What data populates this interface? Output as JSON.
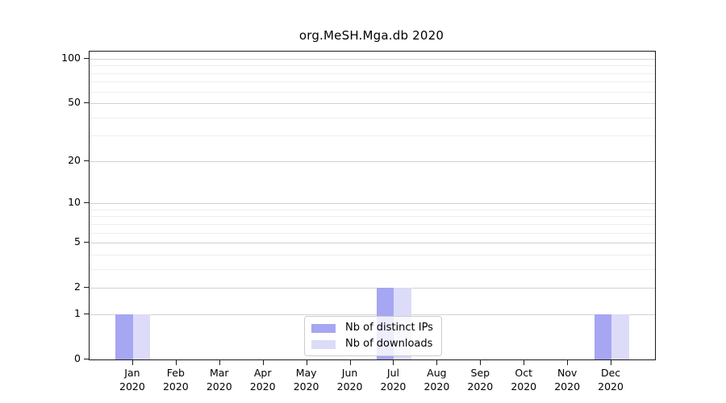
{
  "chart_data": {
    "type": "bar",
    "title": "org.MeSH.Mga.db 2020",
    "x_tick_months": [
      "Jan",
      "Feb",
      "Mar",
      "Apr",
      "May",
      "Jun",
      "Jul",
      "Aug",
      "Sep",
      "Oct",
      "Nov",
      "Dec"
    ],
    "x_tick_year": "2020",
    "series": [
      {
        "name": "Nb of distinct IPs",
        "color": "#a6a6f2",
        "values": [
          1,
          0,
          0,
          0,
          0,
          0,
          2,
          0,
          0,
          0,
          0,
          1
        ]
      },
      {
        "name": "Nb of downloads",
        "color": "#dcdcf8",
        "values": [
          1,
          0,
          0,
          0,
          0,
          0,
          2,
          0,
          0,
          0,
          0,
          1
        ]
      }
    ],
    "y_scale": "log1p",
    "y_ticks": [
      0,
      1,
      2,
      5,
      10,
      20,
      50,
      100
    ],
    "y_minor_gridlines": [
      3,
      4,
      6,
      7,
      8,
      9,
      30,
      40,
      60,
      70,
      80,
      90
    ],
    "ylim": [
      0,
      100
    ],
    "grid": true,
    "legend_position": "lower center",
    "colors": {
      "spine": "#1a1a1a",
      "major_grid": "#d2d2d2",
      "minor_grid": "#eeeeee",
      "legend_border": "#cccccc",
      "background": "#ffffff"
    }
  }
}
